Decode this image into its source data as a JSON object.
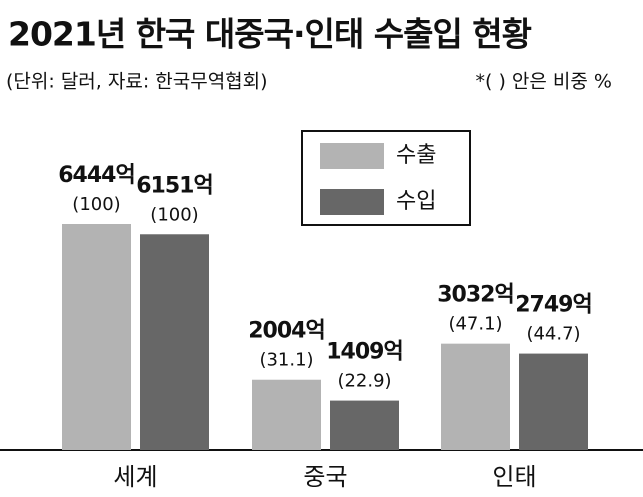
{
  "chart_data": {
    "type": "bar",
    "title": "2021년 한국 대중국·인태 수출입 현황",
    "subtitle": "(단위: 달러, 자료: 한국무역협회)",
    "note": "*(   ) 안은 비중 %",
    "categories": [
      "세계",
      "중국",
      "인태"
    ],
    "series": [
      {
        "name": "수출",
        "color": "#b3b3b3",
        "values": [
          6444,
          2004,
          3032
        ],
        "value_labels": [
          "6444억",
          "2004억",
          "3032억"
        ],
        "share_labels": [
          "(100)",
          "(31.1)",
          "(47.1)"
        ]
      },
      {
        "name": "수입",
        "color": "#676767",
        "values": [
          6151,
          1409,
          2749
        ],
        "value_labels": [
          "6151억",
          "1409억",
          "2749억"
        ],
        "share_labels": [
          "(100)",
          "(22.9)",
          "(44.7)"
        ]
      }
    ]
  }
}
